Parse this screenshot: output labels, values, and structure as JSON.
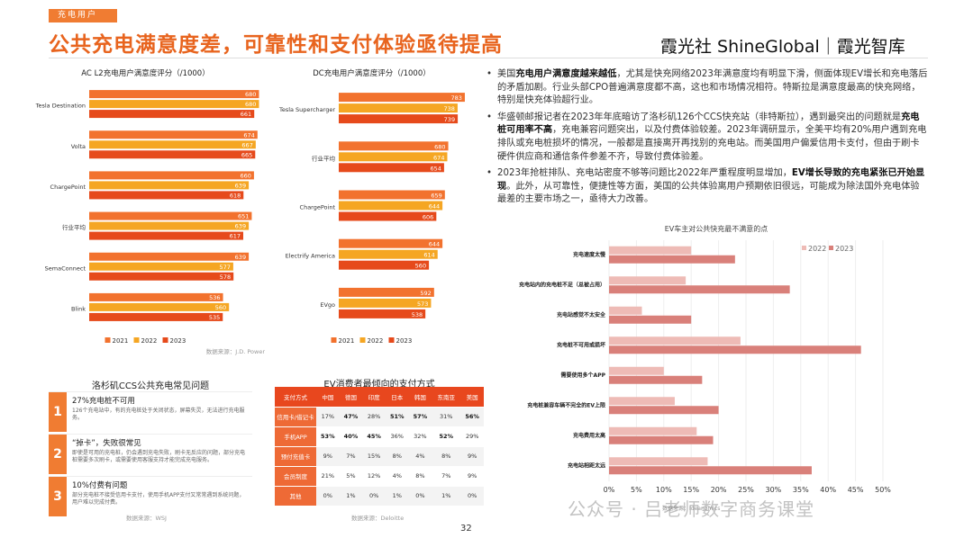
{
  "header": {
    "tag": "充电用户",
    "title": "公共充电满意度差，可靠性和支付体验亟待提高",
    "brand": "霞光社 ShineGlobal｜霞光智库"
  },
  "colors": {
    "c2021": "#f2722e",
    "c2022": "#f5a623",
    "c2023": "#e64a1b",
    "v2022": "#eebbb6",
    "v2023": "#d9807a"
  },
  "bullets": [
    {
      "pre": "美国",
      "bold": "充电用户满意度越来越低",
      "post": "，尤其是快充网络2023年满意度均有明显下滑，侧面体现EV增长和充电落后的矛盾加剧。行业头部CPO普遍满意度都不高，这也和市场情况相符。特斯拉是满意度最高的快充网络，特别是快充体验超行业。"
    },
    {
      "pre": "华盛顿邮报记者在2023年年底暗访了洛杉矶126个CCS快充站（非特斯拉），遇到最突出的问题就是",
      "bold": "充电桩可用率不高",
      "post": "，充电兼容问题突出，以及付费体验较差。2023年调研显示，全美平均有20%用户遇到充电排队或充电桩损坏的情况，一般都是直接离开再找别的充电站。而美国用户偏爱信用卡支付，但由于刷卡硬件供应商和通信条件参差不齐，导致付费体验差。"
    },
    {
      "pre": "2023年抢桩排队、充电站密度不够等问题比2022年严重程度明显增加，",
      "bold": "EV增长导致的充电紧张已开始显现",
      "post": "。此外，从可靠性，便捷性等方面，美国的公共体验离用户预期依旧很远，可能成为除法国外充电体验最差的主要市场之一，亟待大力改善。"
    }
  ],
  "chart_data": [
    {
      "type": "bar",
      "orientation": "horizontal",
      "title": "AC L2充电用户满意度评分（/1000）",
      "categories": [
        "Tesla Destination",
        "Volta",
        "ChargePoint",
        "行业平均",
        "SemaConnect",
        "Blink"
      ],
      "series": [
        {
          "name": "2021",
          "values": [
            680,
            674,
            660,
            651,
            639,
            536
          ]
        },
        {
          "name": "2022",
          "values": [
            680,
            667,
            639,
            639,
            577,
            560
          ]
        },
        {
          "name": "2023",
          "values": [
            661,
            665,
            618,
            617,
            578,
            535
          ]
        }
      ],
      "xlim": [
        0,
        700
      ],
      "source": "数据来源：J.D. Power"
    },
    {
      "type": "bar",
      "orientation": "horizontal",
      "title": "DC充电用户满意度评分（/1000）",
      "categories": [
        "Tesla Supercharger",
        "行业平均",
        "ChargePoint",
        "Electrify America",
        "EVgo"
      ],
      "series": [
        {
          "name": "2021",
          "values": [
            783,
            680,
            659,
            644,
            592
          ]
        },
        {
          "name": "2022",
          "values": [
            738,
            674,
            644,
            614,
            573
          ]
        },
        {
          "name": "2023",
          "values": [
            739,
            654,
            606,
            560,
            538
          ]
        }
      ],
      "xlim": [
        0,
        800
      ]
    },
    {
      "type": "bar",
      "orientation": "horizontal",
      "title": "EV车主对公共快充最不满意的点",
      "categories": [
        "充电速度太慢",
        "充电站内的充电桩不足（总被占用）",
        "充电站感觉不太安全",
        "充电桩不可用或损坏",
        "需要使用多个APP",
        "充电桩兼容车辆不完全的EV上限",
        "充电费用太高",
        "充电站相距太远"
      ],
      "series": [
        {
          "name": "2022",
          "values": [
            0.15,
            0.14,
            0.06,
            0.24,
            0.1,
            0.12,
            0.16,
            0.18
          ]
        },
        {
          "name": "2023",
          "values": [
            0.23,
            0.33,
            0.15,
            0.46,
            0.17,
            0.2,
            0.19,
            0.37
          ]
        }
      ],
      "xticks": [
        "0%",
        "5%",
        "10%",
        "15%",
        "20%",
        "25%",
        "30%",
        "35%",
        "40%",
        "45%",
        "50%"
      ],
      "xlim": [
        0,
        0.5
      ],
      "source": "数据来源：Ideanomics"
    },
    {
      "type": "table",
      "title": "EV消费者最倾向的支付方式",
      "columns": [
        "支付方式",
        "中国",
        "德国",
        "印度",
        "日本",
        "韩国",
        "东南亚",
        "美国"
      ],
      "rows": [
        [
          "信用卡/借记卡",
          "17%",
          "47%",
          "28%",
          "51%",
          "57%",
          "31%",
          "56%"
        ],
        [
          "手机APP",
          "53%",
          "40%",
          "45%",
          "36%",
          "32%",
          "52%",
          "29%"
        ],
        [
          "预付充值卡",
          "9%",
          "7%",
          "15%",
          "8%",
          "4%",
          "8%",
          "9%"
        ],
        [
          "会员制度",
          "21%",
          "5%",
          "12%",
          "4%",
          "8%",
          "7%",
          "9%"
        ],
        [
          "其他",
          "0%",
          "1%",
          "0%",
          "1%",
          "0%",
          "1%",
          "0%"
        ]
      ],
      "source": "数据来源：Deloitte"
    }
  ],
  "issues": {
    "title": "洛杉矶CCS公共充电常见问题",
    "items": [
      {
        "num": "1",
        "head": "27%充电桩不可用",
        "desc": "126个充电站中，有的充电桩处于关闭状态，屏幕失灵，无法进行充电服务。"
      },
      {
        "num": "2",
        "head": "“掉卡”，失败很常见",
        "desc": "即使是可用的充电桩，仍会遇到充电失败，刷卡无反应的问题，部分充电桩需要多次刷卡，或需要使用客服支持才能完成充电服务。"
      },
      {
        "num": "3",
        "head": "10%付费有问题",
        "desc": "部分充电桩不接受信用卡支付，使用手机APP支付又常常遇到系统问题，用户难以完成付费。"
      }
    ],
    "source": "数据来源：WSJ"
  },
  "page_number": "32",
  "watermark": "公众号 · 吕老师数字商务课堂"
}
